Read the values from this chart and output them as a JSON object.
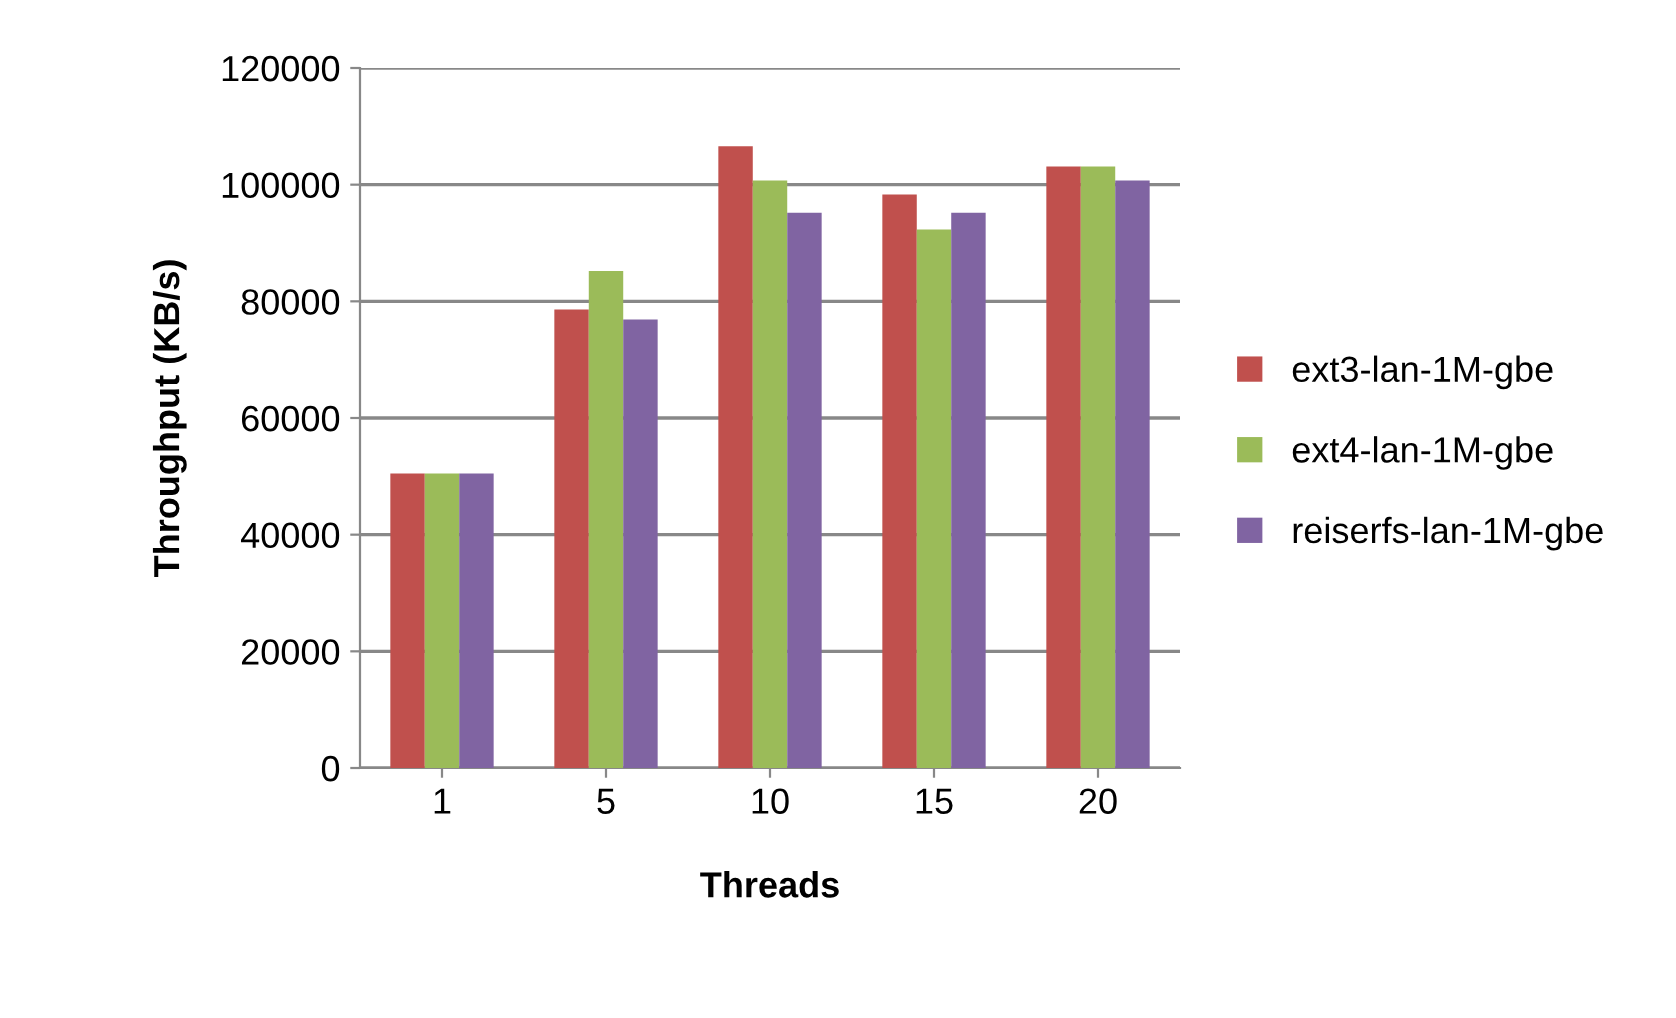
{
  "chart_data": {
    "type": "bar",
    "xlabel": "Threads",
    "ylabel": "Throughput (KB/s)",
    "categories": [
      "1",
      "5",
      "10",
      "15",
      "20"
    ],
    "series": [
      {
        "name": "ext3-lan-1M-gbe",
        "color": "#c0504d",
        "values": [
          50500,
          78600,
          106600,
          98300,
          103100
        ]
      },
      {
        "name": "ext4-lan-1M-gbe",
        "color": "#9bbb59",
        "values": [
          50500,
          85200,
          100700,
          92300,
          103100
        ]
      },
      {
        "name": "reiserfs-lan-1M-gbe",
        "color": "#8064a2",
        "values": [
          50500,
          76900,
          95200,
          95200,
          100700
        ]
      }
    ],
    "ylim": [
      0,
      120000
    ],
    "yticks": [
      0,
      20000,
      40000,
      60000,
      80000,
      100000,
      120000
    ],
    "grid": "y",
    "legend": "right"
  }
}
